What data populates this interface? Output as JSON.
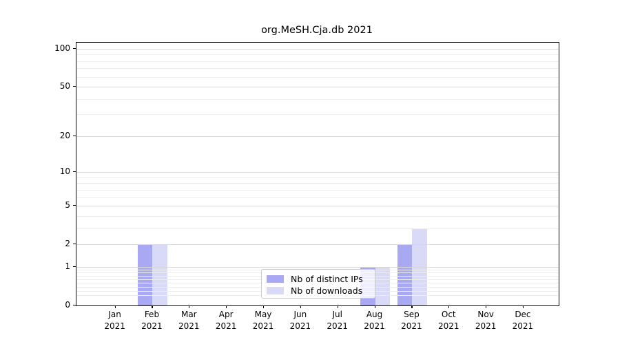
{
  "chart_data": {
    "type": "bar",
    "title": "org.MeSH.Cja.db 2021",
    "categories": [
      "Jan 2021",
      "Feb 2021",
      "Mar 2021",
      "Apr 2021",
      "May 2021",
      "Jun 2021",
      "Jul 2021",
      "Aug 2021",
      "Sep 2021",
      "Oct 2021",
      "Nov 2021",
      "Dec 2021"
    ],
    "series": [
      {
        "name": "Nb of distinct IPs",
        "color": "#a8a8f3",
        "values": [
          0,
          2,
          0,
          0,
          0,
          0,
          0,
          1,
          2,
          0,
          0,
          0
        ]
      },
      {
        "name": "Nb of downloads",
        "color": "#d9d9f8",
        "values": [
          0,
          2,
          0,
          0,
          0,
          0,
          0,
          1,
          3,
          0,
          0,
          0
        ]
      }
    ],
    "yscale": "log1p",
    "ylim": [
      0,
      112
    ],
    "yticks": [
      0,
      1,
      2,
      5,
      10,
      20,
      50,
      100
    ],
    "yminorticks": [
      0.2,
      0.3,
      0.4,
      0.5,
      0.6,
      0.7,
      0.8,
      0.9,
      3,
      4,
      6,
      7,
      8,
      9,
      30,
      40,
      60,
      70,
      80,
      90
    ],
    "xlabel": "",
    "ylabel": "",
    "grid": "horizontal",
    "legend_position": "lower center (inside plot)"
  },
  "colors": {
    "background": "#ffffff",
    "axis": "#000000",
    "grid_major": "#d8d8d8",
    "grid_minor": "#ededed",
    "legend_border": "#c9c9c9",
    "legend_background": "rgba(255,255,255,0.8)",
    "text": "#000000"
  }
}
